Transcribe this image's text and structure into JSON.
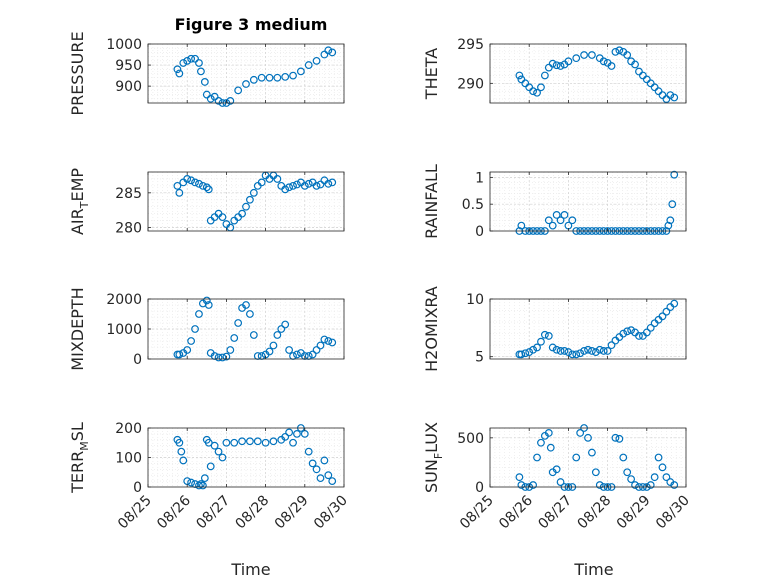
{
  "title": "Figure 3 medium",
  "xlabel": "Time",
  "marker_color": "#0072BD",
  "x_ticks": [
    "08/25",
    "08/26",
    "08/27",
    "08/28",
    "08/29",
    "08/30"
  ],
  "chart_data": [
    {
      "type": "scatter",
      "ylabel": "PRESSURE",
      "ylim": [
        860,
        1000
      ],
      "yticks": [
        900,
        950,
        1000
      ],
      "x": [
        25.75,
        25.8,
        25.9,
        26.0,
        26.1,
        26.2,
        26.3,
        26.35,
        26.45,
        26.5,
        26.6,
        26.7,
        26.8,
        26.9,
        27.0,
        27.1,
        27.3,
        27.5,
        27.7,
        27.9,
        28.1,
        28.3,
        28.5,
        28.7,
        28.9,
        29.1,
        29.3,
        29.5,
        29.6,
        29.7
      ],
      "y": [
        940,
        930,
        955,
        960,
        965,
        965,
        955,
        935,
        910,
        880,
        870,
        875,
        865,
        860,
        860,
        865,
        890,
        905,
        915,
        920,
        920,
        920,
        922,
        925,
        935,
        950,
        960,
        975,
        985,
        980
      ]
    },
    {
      "type": "scatter",
      "ylabel": "THETA",
      "ylim": [
        287.5,
        295
      ],
      "yticks": [
        290,
        295
      ],
      "x": [
        25.75,
        25.8,
        25.9,
        26.0,
        26.1,
        26.2,
        26.3,
        26.4,
        26.5,
        26.6,
        26.7,
        26.8,
        26.9,
        27.0,
        27.2,
        27.4,
        27.6,
        27.8,
        27.9,
        28.0,
        28.1,
        28.2,
        28.3,
        28.4,
        28.5,
        28.6,
        28.7,
        28.8,
        28.9,
        29.0,
        29.1,
        29.2,
        29.3,
        29.4,
        29.5,
        29.6,
        29.7
      ],
      "y": [
        291,
        290.5,
        290,
        289.5,
        289,
        288.8,
        289.5,
        291,
        292,
        292.5,
        292.3,
        292.2,
        292.4,
        292.8,
        293.2,
        293.6,
        293.6,
        293.2,
        292.8,
        292.6,
        292.2,
        294,
        294.2,
        294,
        293.6,
        292.8,
        292.4,
        291.5,
        291,
        290.5,
        290,
        289.5,
        289,
        288.5,
        288,
        288.5,
        288.2
      ]
    },
    {
      "type": "scatter",
      "ylabel": "AIR_TEMP",
      "ylim": [
        279.5,
        288
      ],
      "yticks": [
        280,
        285
      ],
      "x": [
        25.75,
        25.8,
        25.9,
        26.0,
        26.1,
        26.2,
        26.3,
        26.4,
        26.5,
        26.55,
        26.6,
        26.7,
        26.8,
        26.9,
        27.0,
        27.1,
        27.2,
        27.3,
        27.4,
        27.5,
        27.6,
        27.7,
        27.8,
        27.9,
        28.0,
        28.1,
        28.2,
        28.3,
        28.4,
        28.5,
        28.6,
        28.7,
        28.8,
        28.9,
        29.0,
        29.1,
        29.2,
        29.3,
        29.4,
        29.5,
        29.6,
        29.7
      ],
      "y": [
        286,
        285,
        286.5,
        287,
        286.8,
        286.5,
        286.3,
        286,
        285.8,
        285.5,
        281,
        281.5,
        282,
        281.5,
        280.5,
        280,
        281,
        281.5,
        282,
        283,
        284,
        285,
        286,
        286.5,
        287.5,
        287,
        287.5,
        287,
        286,
        285.5,
        285.8,
        286,
        286.2,
        286.5,
        286,
        286.3,
        286.5,
        286,
        286.2,
        286.8,
        286.3,
        286.5
      ]
    },
    {
      "type": "scatter",
      "ylabel": "RAINFALL",
      "ylim": [
        0,
        1.1
      ],
      "yticks": [
        0,
        0.5,
        1
      ],
      "x": [
        25.75,
        25.8,
        25.9,
        26.0,
        26.1,
        26.2,
        26.3,
        26.4,
        26.5,
        26.6,
        26.7,
        26.8,
        26.9,
        27.0,
        27.1,
        27.2,
        27.3,
        27.4,
        27.5,
        27.6,
        27.7,
        27.8,
        27.9,
        28.0,
        28.1,
        28.2,
        28.3,
        28.4,
        28.5,
        28.6,
        28.7,
        28.8,
        28.9,
        29.0,
        29.1,
        29.2,
        29.3,
        29.4,
        29.5,
        29.55,
        29.6,
        29.65,
        29.7
      ],
      "y": [
        0,
        0.1,
        0,
        0,
        0,
        0,
        0,
        0,
        0.2,
        0.1,
        0.3,
        0.2,
        0.3,
        0.1,
        0.2,
        0,
        0,
        0,
        0,
        0,
        0,
        0,
        0,
        0,
        0,
        0,
        0,
        0,
        0,
        0,
        0,
        0,
        0,
        0,
        0,
        0,
        0,
        0,
        0,
        0.1,
        0.2,
        0.5,
        1.05
      ]
    },
    {
      "type": "scatter",
      "ylabel": "MIXDEPTH",
      "ylim": [
        0,
        2000
      ],
      "yticks": [
        0,
        1000,
        2000
      ],
      "x": [
        25.75,
        25.8,
        25.9,
        26.0,
        26.1,
        26.2,
        26.3,
        26.4,
        26.5,
        26.55,
        26.6,
        26.7,
        26.8,
        26.9,
        27.0,
        27.1,
        27.2,
        27.3,
        27.4,
        27.5,
        27.6,
        27.7,
        27.8,
        27.9,
        28.0,
        28.1,
        28.2,
        28.3,
        28.4,
        28.5,
        28.6,
        28.7,
        28.8,
        28.9,
        29.0,
        29.1,
        29.2,
        29.3,
        29.4,
        29.5,
        29.6,
        29.7
      ],
      "y": [
        150,
        150,
        200,
        300,
        600,
        1000,
        1500,
        1850,
        1950,
        1800,
        200,
        100,
        50,
        50,
        80,
        300,
        700,
        1200,
        1700,
        1800,
        1500,
        800,
        100,
        100,
        150,
        250,
        450,
        800,
        1000,
        1150,
        300,
        100,
        150,
        200,
        100,
        100,
        150,
        300,
        450,
        650,
        600,
        550
      ]
    },
    {
      "type": "scatter",
      "ylabel": "H2OMIXRA",
      "ylim": [
        4.8,
        10
      ],
      "yticks": [
        5,
        10
      ],
      "x": [
        25.75,
        25.8,
        25.9,
        26.0,
        26.1,
        26.2,
        26.3,
        26.4,
        26.5,
        26.6,
        26.7,
        26.8,
        26.9,
        27.0,
        27.1,
        27.2,
        27.3,
        27.4,
        27.5,
        27.6,
        27.7,
        27.8,
        27.9,
        28.0,
        28.1,
        28.2,
        28.3,
        28.4,
        28.5,
        28.6,
        28.7,
        28.8,
        28.9,
        29.0,
        29.1,
        29.2,
        29.3,
        29.4,
        29.5,
        29.6,
        29.7
      ],
      "y": [
        5.2,
        5.2,
        5.3,
        5.4,
        5.6,
        5.8,
        6.3,
        6.9,
        6.8,
        5.8,
        5.6,
        5.5,
        5.5,
        5.4,
        5.2,
        5.2,
        5.3,
        5.5,
        5.6,
        5.5,
        5.4,
        5.6,
        5.5,
        5.5,
        6.0,
        6.4,
        6.7,
        7.0,
        7.2,
        7.3,
        7.1,
        6.8,
        6.8,
        7.1,
        7.5,
        7.9,
        8.2,
        8.5,
        8.9,
        9.3,
        9.6
      ]
    },
    {
      "type": "scatter",
      "ylabel": "TERR_MSL",
      "ylim": [
        0,
        200
      ],
      "yticks": [
        0,
        100,
        200
      ],
      "x": [
        25.75,
        25.8,
        25.85,
        25.9,
        26.0,
        26.1,
        26.2,
        26.3,
        26.35,
        26.4,
        26.45,
        26.5,
        26.55,
        26.6,
        26.7,
        26.8,
        26.9,
        27.0,
        27.2,
        27.4,
        27.6,
        27.8,
        28.0,
        28.2,
        28.4,
        28.5,
        28.6,
        28.7,
        28.8,
        28.9,
        29.0,
        29.1,
        29.2,
        29.3,
        29.4,
        29.5,
        29.6,
        29.7
      ],
      "y": [
        160,
        150,
        120,
        90,
        20,
        15,
        10,
        5,
        10,
        5,
        30,
        160,
        150,
        70,
        140,
        120,
        100,
        150,
        150,
        155,
        155,
        155,
        150,
        155,
        160,
        170,
        185,
        150,
        180,
        200,
        180,
        120,
        80,
        60,
        30,
        90,
        40,
        20
      ]
    },
    {
      "type": "scatter",
      "ylabel": "SUN_FLUX",
      "ylim": [
        0,
        600
      ],
      "yticks": [
        0,
        500
      ],
      "x": [
        25.75,
        25.8,
        25.9,
        26.0,
        26.1,
        26.2,
        26.3,
        26.4,
        26.5,
        26.55,
        26.6,
        26.7,
        26.8,
        26.9,
        27.0,
        27.1,
        27.2,
        27.3,
        27.4,
        27.5,
        27.6,
        27.7,
        27.8,
        27.9,
        28.0,
        28.1,
        28.2,
        28.3,
        28.4,
        28.5,
        28.6,
        28.7,
        28.8,
        28.9,
        29.0,
        29.1,
        29.2,
        29.3,
        29.4,
        29.5,
        29.6,
        29.7
      ],
      "y": [
        100,
        20,
        0,
        0,
        20,
        300,
        450,
        520,
        550,
        400,
        150,
        180,
        50,
        0,
        0,
        0,
        300,
        550,
        600,
        500,
        350,
        150,
        20,
        0,
        0,
        0,
        500,
        490,
        300,
        150,
        80,
        20,
        0,
        0,
        0,
        20,
        100,
        300,
        200,
        100,
        50,
        20
      ]
    }
  ]
}
